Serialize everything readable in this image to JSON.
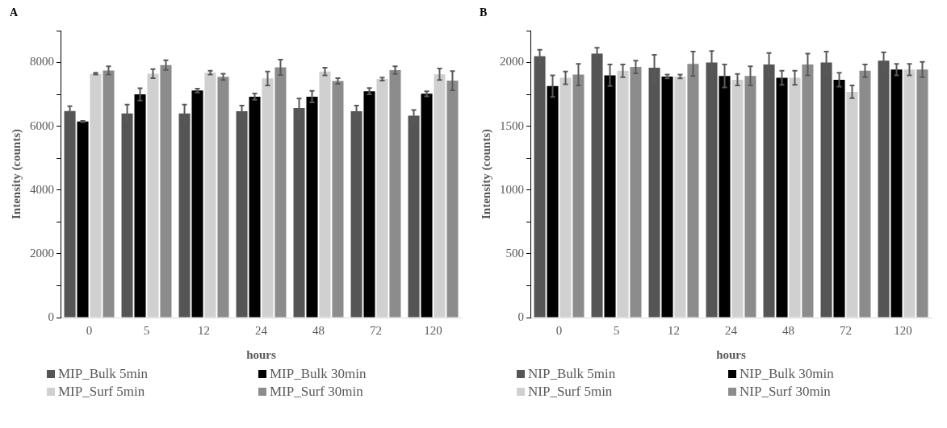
{
  "chart_data": [
    {
      "type": "bar",
      "title": "A",
      "xlabel": "hours",
      "ylabel": "Intensity (counts)",
      "categories": [
        "0",
        "5",
        "12",
        "24",
        "48",
        "72",
        "120"
      ],
      "ylim": [
        0,
        9000
      ],
      "yticks": [
        0,
        {
          "value": 1000,
          "label": null
        },
        2000,
        {
          "value": 3000,
          "label": null
        },
        4000,
        {
          "value": 5000,
          "label": null
        },
        6000,
        {
          "value": 7000,
          "label": null
        },
        8000,
        {
          "value": 9000,
          "label": null
        }
      ],
      "grid": false,
      "legend": "bottom",
      "series": [
        {
          "name": "MIP_Bulk 5min",
          "color": "#555555",
          "values": [
            6480,
            6400,
            6400,
            6470,
            6570,
            6470,
            6330
          ],
          "errors": [
            150,
            280,
            280,
            180,
            300,
            180,
            180
          ]
        },
        {
          "name": "MIP_Bulk 30min",
          "color": "#000000",
          "values": [
            6150,
            7000,
            7120,
            6930,
            6930,
            7100,
            7020
          ],
          "errors": [
            20,
            190,
            60,
            100,
            180,
            100,
            80
          ]
        },
        {
          "name": "MIP_Surf 5min",
          "color": "#d0d0d0",
          "values": [
            7650,
            7650,
            7680,
            7500,
            7720,
            7480,
            7630
          ],
          "errors": [
            30,
            140,
            60,
            220,
            120,
            50,
            180
          ]
        },
        {
          "name": "MIP_Surf 30min",
          "color": "#8c8c8c",
          "values": [
            7750,
            7920,
            7550,
            7850,
            7420,
            7760,
            7430
          ],
          "errors": [
            130,
            150,
            100,
            240,
            90,
            120,
            300
          ]
        }
      ]
    },
    {
      "type": "bar",
      "title": "B",
      "xlabel": "hours",
      "ylabel": "Intensity (counts)",
      "categories": [
        "0",
        "5",
        "12",
        "24",
        "48",
        "72",
        "120"
      ],
      "ylim": [
        0,
        2250
      ],
      "yticks": [
        0,
        {
          "value": 250,
          "label": null
        },
        500,
        {
          "value": 750,
          "label": null
        },
        1000,
        {
          "value": 1250,
          "label": null
        },
        1500,
        {
          "value": 1750,
          "label": null
        },
        2000,
        {
          "value": 2250,
          "label": null
        }
      ],
      "grid": false,
      "legend": "bottom",
      "series": [
        {
          "name": "NIP_Bulk 5min",
          "color": "#555555",
          "values": [
            2050,
            2070,
            1960,
            2000,
            1985,
            2000,
            2015
          ],
          "errors": [
            50,
            45,
            100,
            90,
            90,
            85,
            65
          ]
        },
        {
          "name": "NIP_Bulk 30min",
          "color": "#000000",
          "values": [
            1815,
            1900,
            1890,
            1895,
            1880,
            1865,
            1945
          ],
          "errors": [
            85,
            85,
            15,
            90,
            55,
            55,
            45
          ]
        },
        {
          "name": "NIP_Surf 5min",
          "color": "#d0d0d0",
          "values": [
            1880,
            1935,
            1890,
            1865,
            1880,
            1770,
            1945
          ],
          "errors": [
            50,
            50,
            15,
            45,
            55,
            50,
            45
          ]
        },
        {
          "name": "NIP_Surf 30min",
          "color": "#8c8c8c",
          "values": [
            1905,
            1965,
            1990,
            1895,
            1985,
            1935,
            1945
          ],
          "errors": [
            85,
            50,
            95,
            75,
            85,
            50,
            60
          ]
        }
      ]
    }
  ]
}
